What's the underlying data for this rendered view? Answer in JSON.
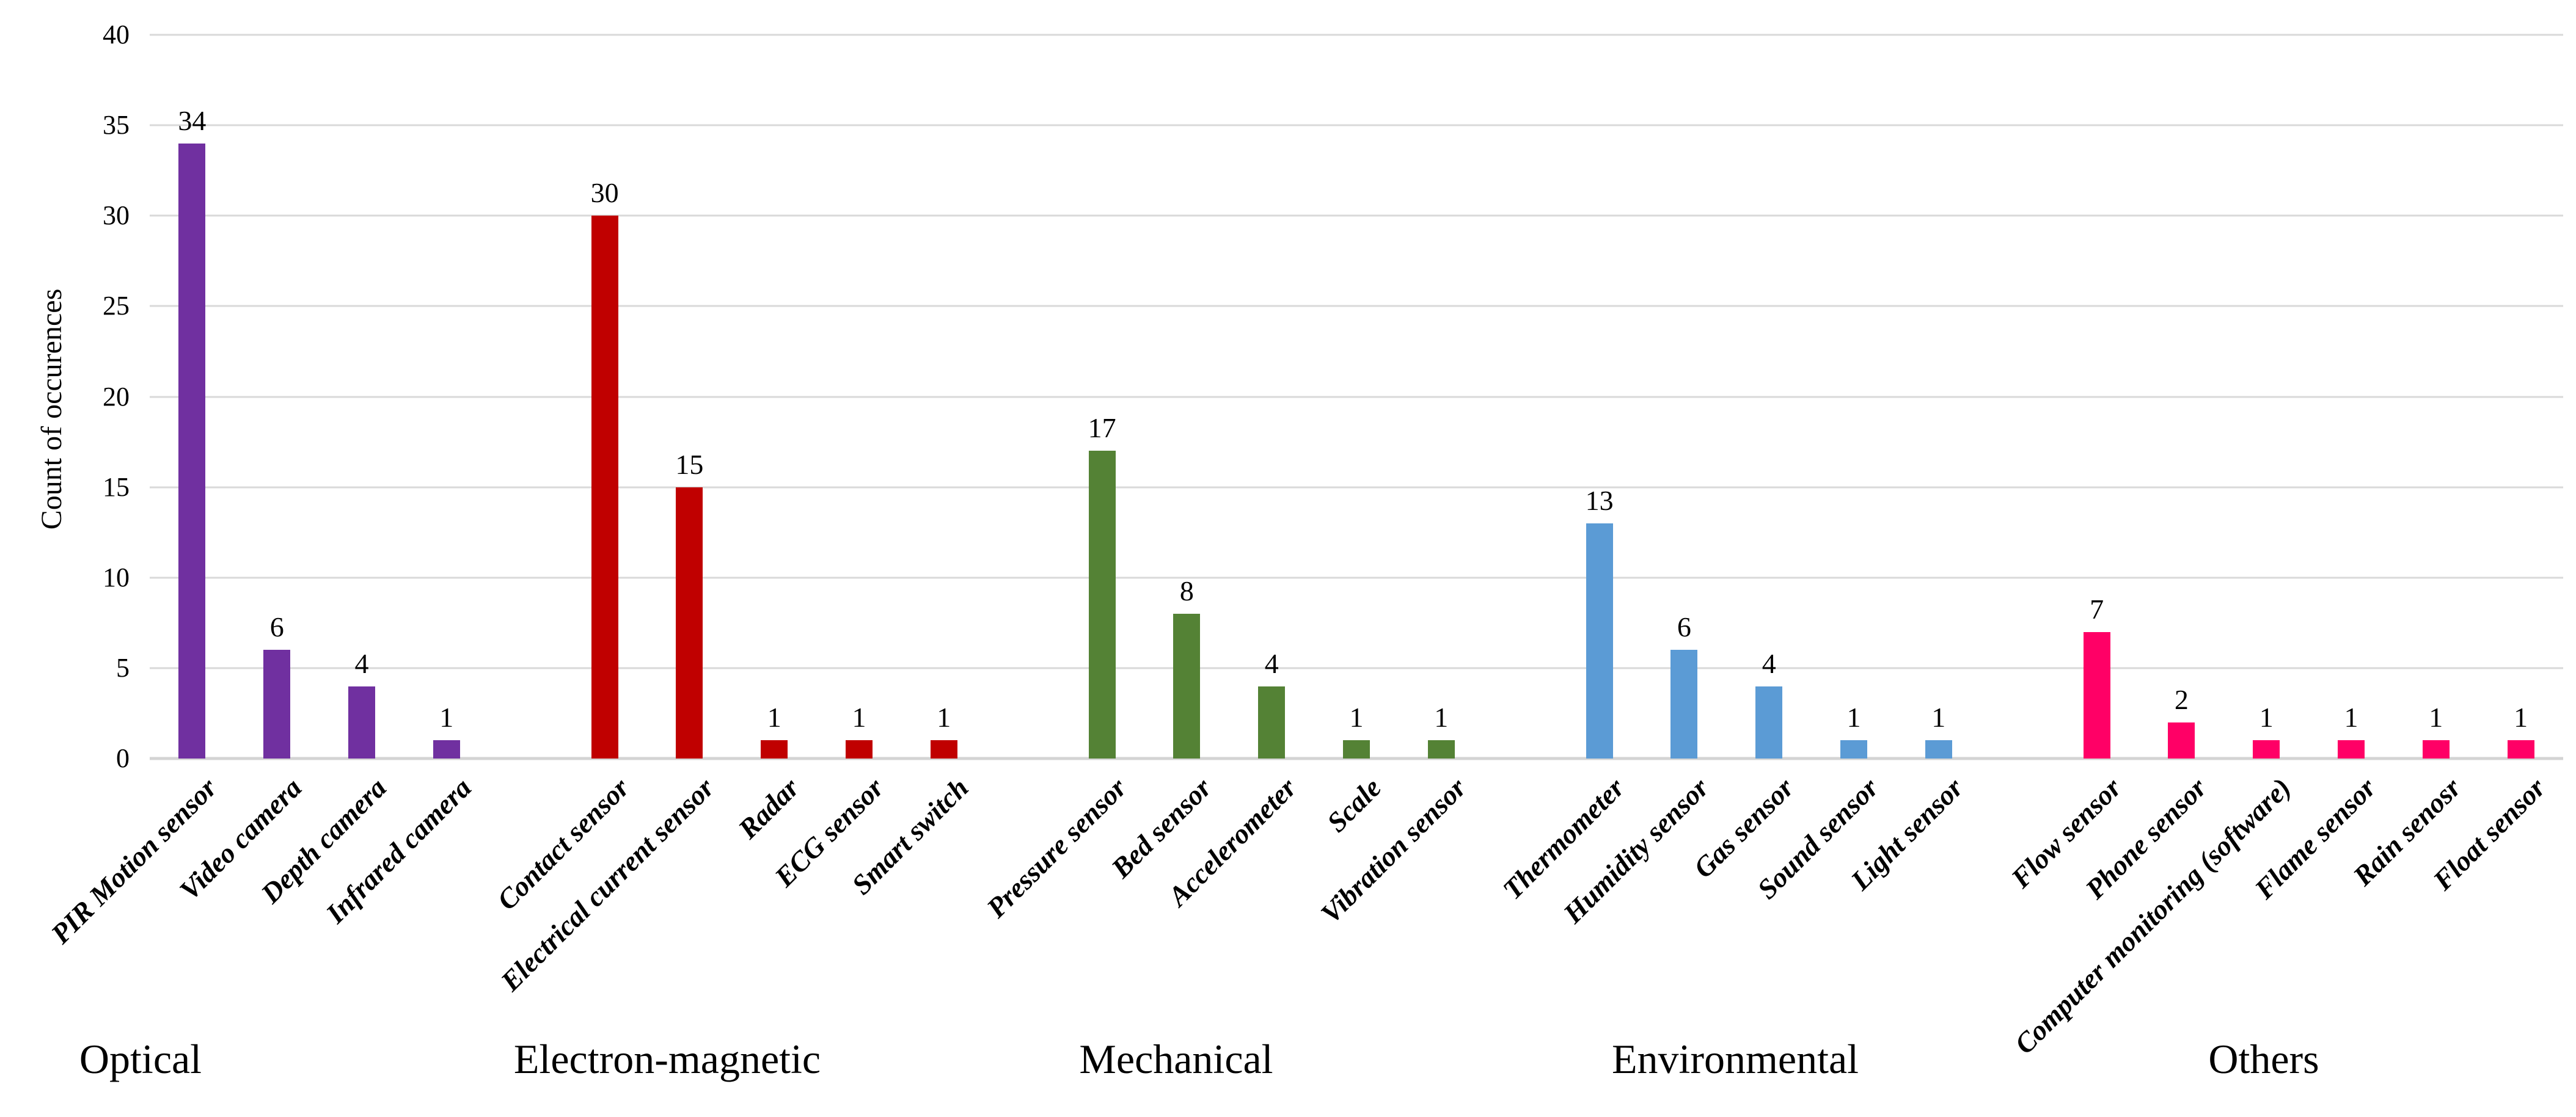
{
  "chart_data": {
    "type": "bar",
    "title": "",
    "ylabel": "Count of occurences",
    "xlabel": "",
    "ylim": [
      0,
      40
    ],
    "yticks": [
      0,
      5,
      10,
      15,
      20,
      25,
      30,
      35,
      40
    ],
    "grid": "horizontal",
    "grid_color": "#D9D9D9",
    "legend": "none",
    "background_color": "#FFFFFF",
    "groups": [
      {
        "name": "Optical",
        "color": "#7030A0",
        "categories": [
          "PIR Motion sensor",
          "Video camera",
          "Depth camera",
          "Infrared camera"
        ],
        "values": [
          34,
          6,
          4,
          1
        ]
      },
      {
        "name": "Electron-magnetic",
        "color": "#C00000",
        "categories": [
          "Contact sensor",
          "Electrical current sensor",
          "Radar",
          "ECG sensor",
          "Smart switch"
        ],
        "values": [
          30,
          15,
          1,
          1,
          1
        ]
      },
      {
        "name": "Mechanical",
        "color": "#548235",
        "categories": [
          "Pressure sensor",
          "Bed sensor",
          "Accelerometer",
          "Scale",
          "Vibration sensor"
        ],
        "values": [
          17,
          8,
          4,
          1,
          1
        ]
      },
      {
        "name": "Environmental",
        "color": "#5B9BD5",
        "categories": [
          "Thermometer",
          "Humidity sensor",
          "Gas sensor",
          "Sound sensor",
          "Light sensor"
        ],
        "values": [
          13,
          6,
          4,
          1,
          1
        ]
      },
      {
        "name": "Others",
        "color": "#FF0066",
        "categories": [
          "Flow sensor",
          "Phone sensor",
          "Computer monitoring (software)",
          "Flame sensor",
          "Rain senosr",
          "Float sensor"
        ],
        "values": [
          7,
          2,
          1,
          1,
          1,
          1
        ]
      }
    ]
  }
}
